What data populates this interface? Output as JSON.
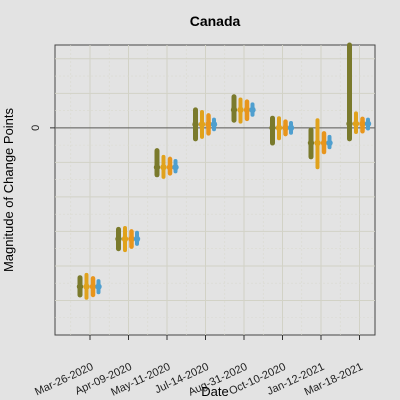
{
  "chart_data": {
    "type": "errorbar",
    "title": "Canada",
    "xlabel": "Date",
    "ylabel": "Magnitude of Change Points",
    "categories": [
      "Mar-26-2020",
      "Apr-09-2020",
      "May-11-2020",
      "Jul-14-2020",
      "Aug-31-2020",
      "Oct-10-2020",
      "Jan-12-2021",
      "Mar-18-2021"
    ],
    "y_ticks": [
      0
    ],
    "ylim": [
      -3.0,
      1.2
    ],
    "grid": true,
    "reference_line": 0,
    "series": [
      {
        "color": "#7a7a2c",
        "points": [
          {
            "y": -2.3,
            "lo": -2.42,
            "hi": -2.17
          },
          {
            "y": -1.61,
            "lo": -1.75,
            "hi": -1.47
          },
          {
            "y": -0.57,
            "lo": -0.68,
            "hi": -0.33
          },
          {
            "y": 0.05,
            "lo": -0.16,
            "hi": 0.26
          },
          {
            "y": 0.26,
            "lo": 0.11,
            "hi": 0.45
          },
          {
            "y": 0.0,
            "lo": -0.22,
            "hi": 0.14
          },
          {
            "y": -0.22,
            "lo": -0.42,
            "hi": -0.03
          },
          {
            "y": 0.06,
            "lo": -0.16,
            "hi": 1.2
          }
        ]
      },
      {
        "color": "#e0a21c",
        "points": [
          {
            "y": -2.3,
            "lo": -2.46,
            "hi": -2.13
          },
          {
            "y": -1.61,
            "lo": -1.77,
            "hi": -1.45
          },
          {
            "y": -0.57,
            "lo": -0.71,
            "hi": -0.42
          },
          {
            "y": 0.05,
            "lo": -0.13,
            "hi": 0.23
          },
          {
            "y": 0.26,
            "lo": 0.09,
            "hi": 0.41
          },
          {
            "y": 0.0,
            "lo": -0.15,
            "hi": 0.14
          },
          {
            "y": -0.22,
            "lo": -0.57,
            "hi": 0.11
          },
          {
            "y": 0.06,
            "lo": -0.06,
            "hi": 0.21
          }
        ]
      },
      {
        "color": "#e8951c",
        "points": [
          {
            "y": -2.3,
            "lo": -2.42,
            "hi": -2.18
          },
          {
            "y": -1.61,
            "lo": -1.72,
            "hi": -1.5
          },
          {
            "y": -0.57,
            "lo": -0.66,
            "hi": -0.45
          },
          {
            "y": 0.05,
            "lo": -0.08,
            "hi": 0.18
          },
          {
            "y": 0.26,
            "lo": 0.13,
            "hi": 0.38
          },
          {
            "y": 0.0,
            "lo": -0.09,
            "hi": 0.09
          },
          {
            "y": -0.22,
            "lo": -0.35,
            "hi": -0.08
          },
          {
            "y": 0.06,
            "lo": -0.05,
            "hi": 0.13
          }
        ]
      },
      {
        "color": "#4f9fcf",
        "points": [
          {
            "y": -2.3,
            "lo": -2.38,
            "hi": -2.22
          },
          {
            "y": -1.61,
            "lo": -1.68,
            "hi": -1.52
          },
          {
            "y": -0.57,
            "lo": -0.63,
            "hi": -0.48
          },
          {
            "y": 0.05,
            "lo": -0.02,
            "hi": 0.12
          },
          {
            "y": 0.26,
            "lo": 0.19,
            "hi": 0.34
          },
          {
            "y": 0.0,
            "lo": -0.07,
            "hi": 0.07
          },
          {
            "y": -0.22,
            "lo": -0.28,
            "hi": -0.13
          },
          {
            "y": 0.06,
            "lo": -0.01,
            "hi": 0.12
          }
        ]
      }
    ]
  }
}
